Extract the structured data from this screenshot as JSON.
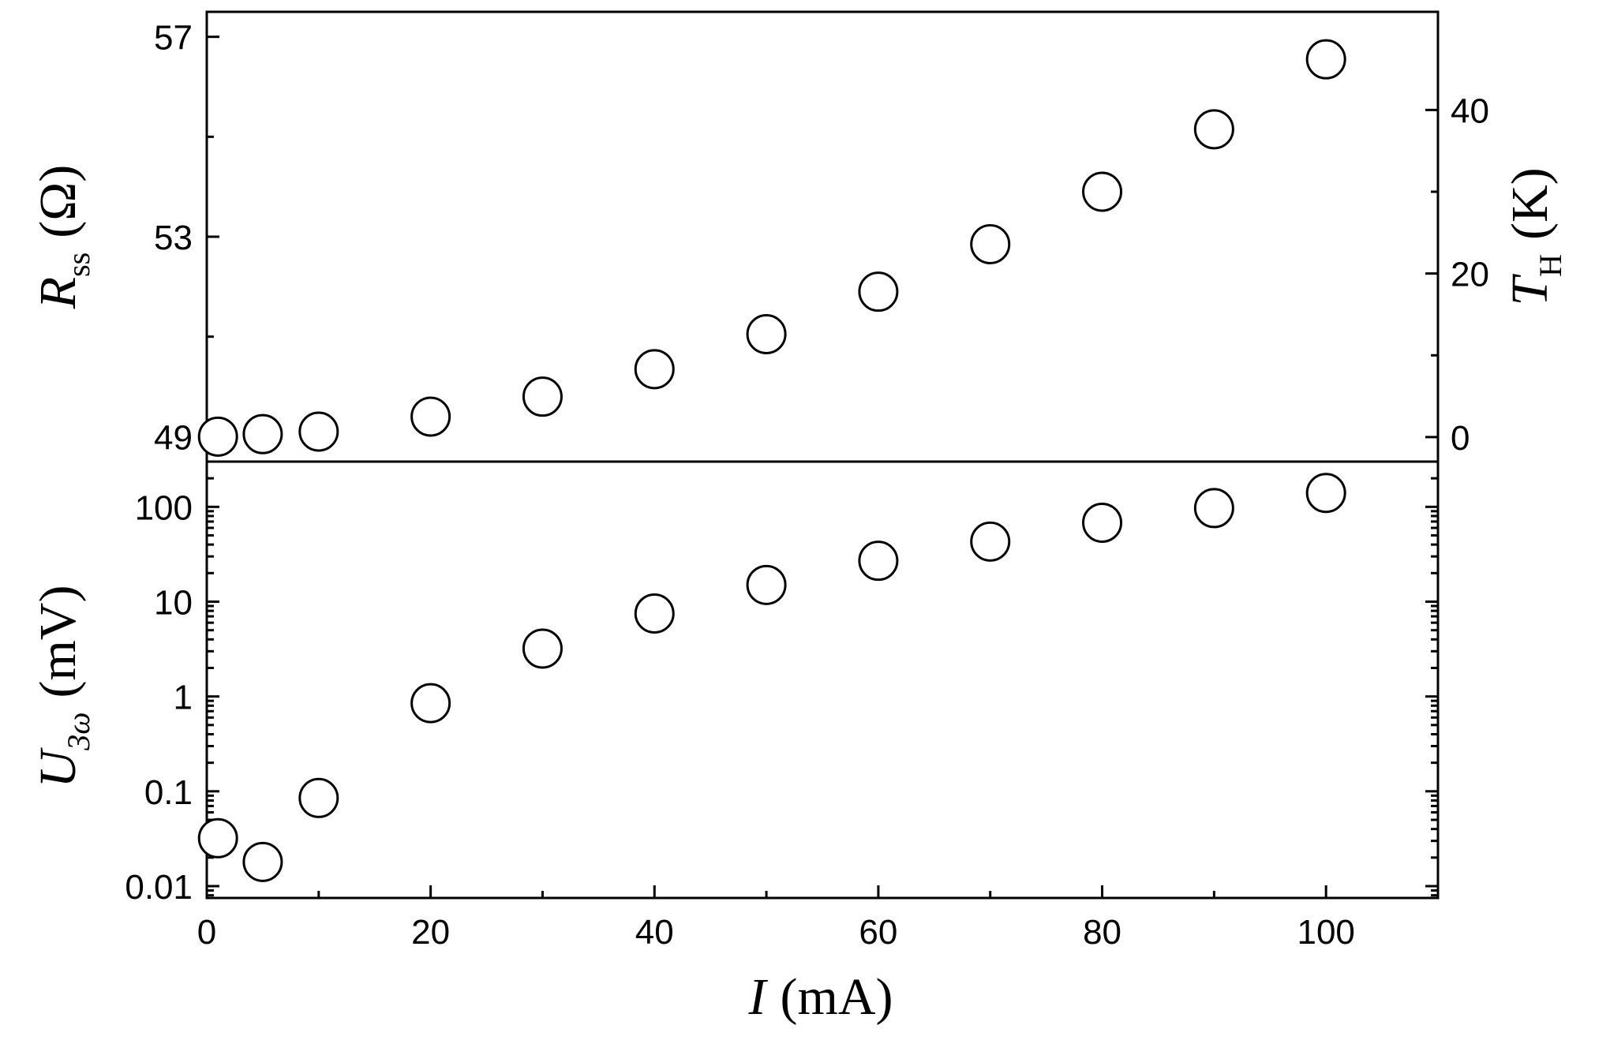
{
  "chart_data": [
    {
      "type": "scatter",
      "panel": "top",
      "xlabel": "I (mA)",
      "xlim": [
        0,
        110
      ],
      "xticks": [
        0,
        20,
        40,
        60,
        80,
        100
      ],
      "ylabel_left": {
        "symbol": "R",
        "subscript": "ss",
        "unit": "(Ω)"
      },
      "ylim_left": [
        48.5,
        57.5
      ],
      "yticks_left": [
        49,
        53,
        57
      ],
      "ylabel_right": {
        "symbol": "T",
        "subscript": "H",
        "unit": "(K)"
      },
      "ylim_right": [
        -3,
        52
      ],
      "yticks_right": [
        0,
        20,
        40
      ],
      "marker": "open-circle",
      "grid": false,
      "series": [
        {
          "x": [
            1,
            5,
            10,
            20,
            30,
            40,
            50,
            60,
            70,
            80,
            90,
            100
          ],
          "y_left": [
            49.0,
            49.05,
            49.1,
            49.4,
            49.8,
            50.35,
            51.05,
            51.9,
            52.85,
            53.9,
            55.15,
            56.55
          ],
          "y_right": [
            0.0,
            0.2,
            0.4,
            2.4,
            4.7,
            8.0,
            12.2,
            17.1,
            22.8,
            29.3,
            36.6,
            44.9
          ]
        }
      ]
    },
    {
      "type": "scatter",
      "panel": "bottom",
      "xlabel": "I (mA)",
      "xlim": [
        0,
        110
      ],
      "xticks": [
        0,
        20,
        40,
        60,
        80,
        100
      ],
      "xtick_labels": [
        "0",
        "20",
        "40",
        "60",
        "80",
        "100"
      ],
      "ylabel": {
        "symbol": "U",
        "subscript": "3ω",
        "unit": "(mV)"
      },
      "yscale": "log",
      "ylim": [
        0.0075,
        300
      ],
      "yticks": [
        0.01,
        0.1,
        1,
        10,
        100
      ],
      "ytick_labels": [
        "0.01",
        "0.1",
        "1",
        "10",
        "100"
      ],
      "marker": "open-circle",
      "grid": false,
      "series": [
        {
          "x": [
            1,
            5,
            10,
            20,
            30,
            40,
            50,
            60,
            70,
            80,
            90,
            100
          ],
          "y": [
            0.032,
            0.018,
            0.085,
            0.85,
            3.2,
            7.5,
            15,
            27,
            43,
            68,
            97,
            140
          ]
        }
      ]
    }
  ],
  "top_ticks_left": [
    "49",
    "53",
    "57"
  ],
  "top_ticks_right": [
    "0",
    "20",
    "40"
  ],
  "bottom_ticks": [
    "0.01",
    "0.1",
    "1",
    "10",
    "100"
  ],
  "x_ticks": [
    "0",
    "20",
    "40",
    "60",
    "80",
    "100"
  ],
  "axis_titles": {
    "top_left": {
      "symbol": "R",
      "sub": "ss",
      "unit": "(Ω)"
    },
    "top_right": {
      "symbol": "T",
      "sub": "H",
      "unit": "(K)"
    },
    "bottom_left": {
      "symbol": "U",
      "sub": "3ω",
      "unit": "(mV)"
    },
    "x": {
      "symbol": "I",
      "unit": "(mA)"
    }
  }
}
